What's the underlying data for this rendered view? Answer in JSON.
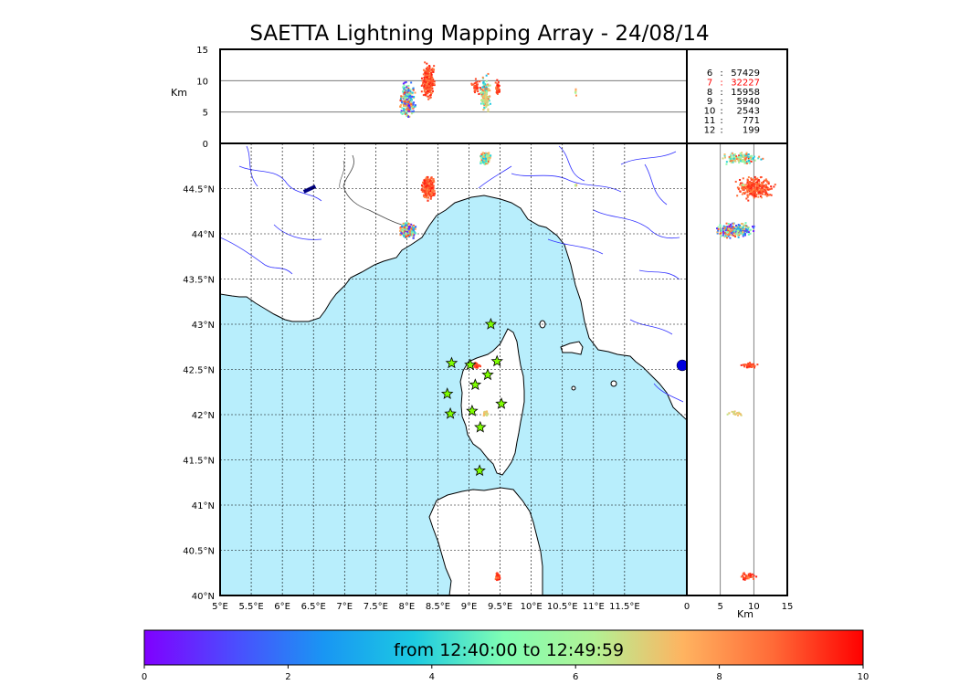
{
  "title": "SAETTA Lightning Mapping Array - 24/08/14",
  "chart_data": {
    "type": "scatter",
    "title": "SAETTA Lightning Mapping Array - 24/08/14",
    "map": {
      "xlim": [
        5,
        12.5
      ],
      "ylim": [
        40,
        45
      ],
      "x_ticks": [
        5,
        5.5,
        6,
        6.5,
        7,
        7.5,
        8,
        8.5,
        9,
        9.5,
        10,
        10.5,
        11,
        11.5
      ],
      "x_tick_labels": [
        "5°E",
        "5.5°E",
        "6°E",
        "6.5°E",
        "7°E",
        "7.5°E",
        "8°E",
        "8.5°E",
        "9°E",
        "9.5°E",
        "10°E",
        "10.5°E",
        "11°E",
        "11.5°E"
      ],
      "y_ticks": [
        40,
        40.5,
        41,
        41.5,
        42,
        42.5,
        43,
        43.5,
        44,
        44.5
      ],
      "y_tick_labels": [
        "40°N",
        "40.5°N",
        "41°N",
        "41.5°N",
        "42°N",
        "42.5°N",
        "43°N",
        "43.5°N",
        "44°N",
        "44.5°N"
      ],
      "grid": true,
      "sea_color": "#b8eefc",
      "land_color": "#ffffff"
    },
    "altitude_top_panel": {
      "ylabel": "Km",
      "ylim": [
        0,
        15
      ],
      "y_ticks": [
        0,
        5,
        10,
        15
      ]
    },
    "altitude_right_panel": {
      "xlabel": "Km",
      "xlim": [
        0,
        15
      ],
      "x_ticks": [
        0,
        5,
        10,
        15
      ]
    },
    "stations": [
      {
        "lon": 9.35,
        "lat": 43.0
      },
      {
        "lon": 8.72,
        "lat": 42.57
      },
      {
        "lon": 9.02,
        "lat": 42.55
      },
      {
        "lon": 9.45,
        "lat": 42.59
      },
      {
        "lon": 9.3,
        "lat": 42.44
      },
      {
        "lon": 9.1,
        "lat": 42.33
      },
      {
        "lon": 8.65,
        "lat": 42.23
      },
      {
        "lon": 9.52,
        "lat": 42.12
      },
      {
        "lon": 8.7,
        "lat": 42.01
      },
      {
        "lon": 9.05,
        "lat": 42.04
      },
      {
        "lon": 9.18,
        "lat": 41.86
      },
      {
        "lon": 9.17,
        "lat": 41.38
      }
    ],
    "station_counts": [
      {
        "stations": "6",
        "count": "57429",
        "color": "#000000"
      },
      {
        "stations": "7",
        "count": "32227",
        "color": "#ff0000"
      },
      {
        "stations": "8",
        "count": "15958",
        "color": "#000000"
      },
      {
        "stations": "9",
        "count": "5940",
        "color": "#000000"
      },
      {
        "stations": "10",
        "count": "2543",
        "color": "#000000"
      },
      {
        "stations": "11",
        "count": "771",
        "color": "#000000"
      },
      {
        "stations": "12",
        "count": "199",
        "color": "#000000"
      }
    ],
    "colorbar": {
      "min": 0,
      "max": 10,
      "ticks": [
        0,
        2,
        4,
        6,
        8,
        10
      ],
      "label": "from 12:40:00 to 12:49:59",
      "colormap": "rainbow"
    }
  }
}
